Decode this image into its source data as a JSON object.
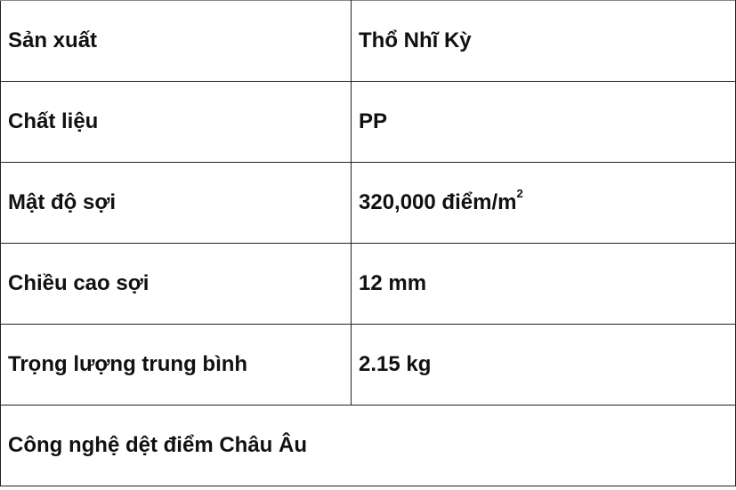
{
  "rows": [
    {
      "label": "Sản xuất",
      "value": "Thổ Nhĩ Kỳ"
    },
    {
      "label": "Chất liệu",
      "value": "PP"
    },
    {
      "label": "Mật độ sợi",
      "value": "320,000 điểm/m",
      "value_sup": "2"
    },
    {
      "label": "Chiều cao sợi",
      "value": "12 mm"
    },
    {
      "label": "Trọng lượng trung bình",
      "value": "2.15 kg"
    }
  ],
  "footer_row": "Công nghệ dệt điểm Châu Âu"
}
